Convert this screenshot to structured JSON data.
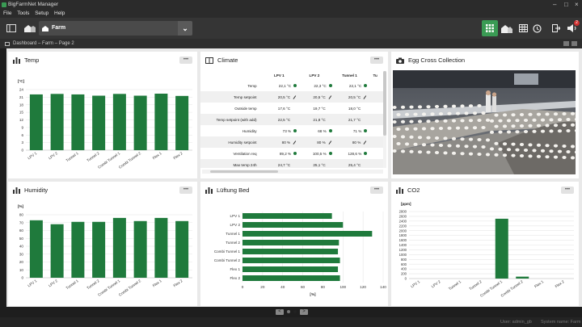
{
  "window": {
    "title": "BigFarmNet Manager"
  },
  "menu": [
    "File",
    "Tools",
    "Setup",
    "Help"
  ],
  "toolbar": {
    "farm_label": "Farm",
    "badge": "2"
  },
  "breadcrumb": "Dashboard – Farm – Page 2",
  "colors": {
    "accent": "#1f7a3c",
    "active_button": "#3a9b54"
  },
  "temp": {
    "title": "Temp",
    "menu": "•••",
    "chart_data": {
      "type": "bar",
      "unit": "[°C]",
      "categories": [
        "LPV 1",
        "LPV 2",
        "Tunnel 1",
        "Tunnel 2",
        "Combi Tunnel 1",
        "Combi Tunnel 2",
        "Flex 1",
        "Flex 2"
      ],
      "values": [
        22.1,
        22.3,
        22.1,
        21.6,
        22.3,
        21.6,
        22.4,
        21.5
      ],
      "ylim": [
        0,
        24
      ],
      "ticks": [
        0,
        3,
        6,
        9,
        12,
        15,
        18,
        21,
        24
      ]
    }
  },
  "climate": {
    "title": "Climate",
    "menu": "•••",
    "columns": [
      "LPV 1",
      "LPV 2",
      "Tunnel 1",
      "Tu"
    ],
    "rows": [
      {
        "label": "Temp",
        "values": [
          "22,1 °C",
          "22,3 °C",
          "22,1 °C"
        ],
        "marks": [
          "dot",
          "dot",
          "dot"
        ]
      },
      {
        "label": "Temp setpoint",
        "values": [
          "20,5 °C",
          "20,5 °C",
          "20,5 °C"
        ],
        "marks": [
          "edit",
          "edit",
          "edit"
        ]
      },
      {
        "label": "Outside temp",
        "values": [
          "17,6 °C",
          "19,7 °C",
          "18,0 °C"
        ],
        "marks": [
          "",
          "",
          ""
        ]
      },
      {
        "label": "Temp setpoint (with add)",
        "values": [
          "22,5 °C",
          "21,8 °C",
          "21,7 °C"
        ],
        "marks": [
          "",
          "",
          ""
        ]
      },
      {
        "label": "Humidity",
        "values": [
          "73 %",
          "68 %",
          "71 %"
        ],
        "marks": [
          "dot",
          "dot",
          "dot"
        ]
      },
      {
        "label": "Humidity setpoint",
        "values": [
          "80 %",
          "80 %",
          "80 %"
        ],
        "marks": [
          "edit",
          "edit",
          "edit"
        ]
      },
      {
        "label": "Ventilation req",
        "values": [
          "89,2 %",
          "100,5 %",
          "128,6 %"
        ],
        "marks": [
          "dot",
          "dot",
          "dot"
        ]
      },
      {
        "label": "Max temp 24h",
        "values": [
          "24,7 °C",
          "25,1 °C",
          "25,4 °C"
        ],
        "marks": [
          "",
          "",
          ""
        ]
      }
    ]
  },
  "egg": {
    "title": "Egg Cross Collection"
  },
  "humidity": {
    "title": "Humidity",
    "menu": "•••",
    "chart_data": {
      "type": "bar",
      "unit": "[%]",
      "categories": [
        "LPV 1",
        "LPV 2",
        "Tunnel 1",
        "Tunnel 2",
        "Combi Tunnel 1",
        "Combi Tunnel 2",
        "Flex 1",
        "Flex 2"
      ],
      "values": [
        73,
        68,
        71,
        71,
        76,
        72,
        76,
        72
      ],
      "ylim": [
        0,
        80
      ],
      "ticks": [
        0,
        10,
        20,
        30,
        40,
        50,
        60,
        70,
        80
      ]
    }
  },
  "lueftung": {
    "title": "Lüftung Bed",
    "menu": "•••",
    "chart_data": {
      "type": "bar",
      "orientation": "horizontal",
      "unit": "[%]",
      "categories": [
        "LPV 1",
        "LPV 2",
        "Tunnel 1",
        "Tunnel 2",
        "Combi Tunnel 1",
        "Combi Tunnel 2",
        "Flex 1",
        "Flex 2"
      ],
      "values": [
        89,
        100,
        129,
        96,
        95,
        97,
        95,
        97
      ],
      "xlim": [
        0,
        140
      ],
      "ticks": [
        0,
        20,
        40,
        60,
        80,
        100,
        120,
        140
      ]
    }
  },
  "co2": {
    "title": "CO2",
    "menu": "•••",
    "chart_data": {
      "type": "bar",
      "unit": "[ppm]",
      "categories": [
        "LPV 1",
        "LPV 2",
        "Tunnel 1",
        "Tunnel 2",
        "Combi Tunnel 1",
        "Combi Tunnel 2",
        "Flex 1",
        "Flex 2"
      ],
      "values": [
        0,
        0,
        0,
        0,
        2500,
        80,
        0,
        0
      ],
      "ylim": [
        0,
        2800
      ],
      "ticks": [
        0,
        200,
        400,
        600,
        800,
        1000,
        1200,
        1400,
        1600,
        1800,
        2000,
        2200,
        2400,
        2600,
        2800
      ]
    }
  },
  "pager": {
    "prev": "<",
    "next": ">"
  },
  "status": {
    "user": "User: admin_gb",
    "system": "System name: Farm"
  }
}
